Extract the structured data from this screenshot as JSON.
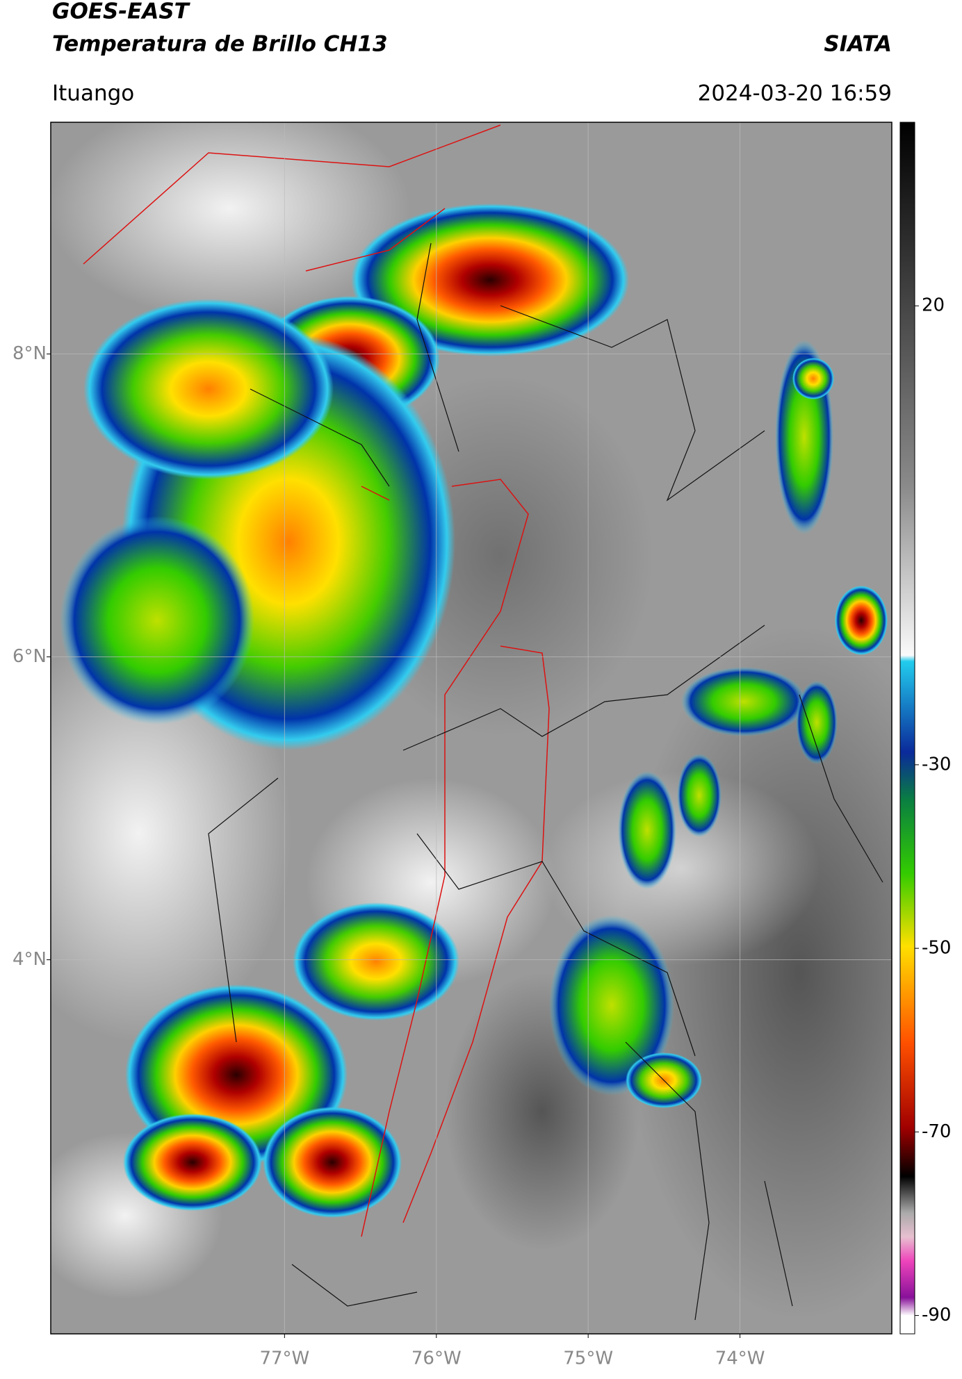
{
  "header": {
    "title": "GOES-EAST",
    "subtitle": "Temperatura de Brillo CH13",
    "source": "SIATA",
    "location": "Ituango",
    "datetime": "2024-03-20 16:59"
  },
  "map": {
    "xlim": [
      -78.54,
      -73.0
    ],
    "ylim": [
      1.53,
      9.53
    ],
    "xticks": [
      {
        "value": -77,
        "label": "77°W"
      },
      {
        "value": -76,
        "label": "76°W"
      },
      {
        "value": -75,
        "label": "75°W"
      },
      {
        "value": -74,
        "label": "74°W"
      }
    ],
    "yticks": [
      {
        "value": 8,
        "label": "8°N"
      },
      {
        "value": 6,
        "label": "6°N"
      },
      {
        "value": 4,
        "label": "4°N"
      }
    ],
    "grid": true
  },
  "colorbar": {
    "lim": [
      -92,
      40
    ],
    "ticks": [
      20,
      -30,
      -50,
      -70,
      -90
    ]
  }
}
